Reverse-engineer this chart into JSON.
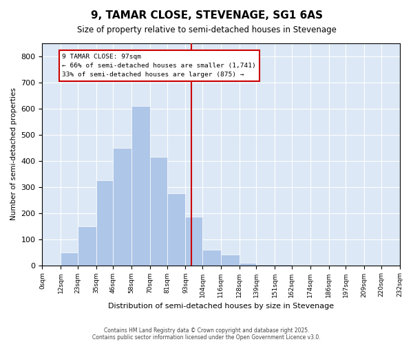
{
  "title": "9, TAMAR CLOSE, STEVENAGE, SG1 6AS",
  "subtitle": "Size of property relative to semi-detached houses in Stevenage",
  "xlabel": "Distribution of semi-detached houses by size in Stevenage",
  "ylabel": "Number of semi-detached properties",
  "property_size": 97,
  "annotation_title": "9 TAMAR CLOSE: 97sqm",
  "annotation_line2": "← 66% of semi-detached houses are smaller (1,741)",
  "annotation_line3": "33% of semi-detached houses are larger (875) →",
  "footer_line1": "Contains HM Land Registry data © Crown copyright and database right 2025.",
  "footer_line2": "Contains public sector information licensed under the Open Government Licence v3.0.",
  "bins": [
    0,
    12,
    23,
    35,
    46,
    58,
    70,
    81,
    93,
    104,
    116,
    128,
    139,
    151,
    162,
    174,
    186,
    197,
    209,
    220,
    232
  ],
  "bin_labels": [
    "0sqm",
    "12sqm",
    "23sqm",
    "35sqm",
    "46sqm",
    "58sqm",
    "70sqm",
    "81sqm",
    "93sqm",
    "104sqm",
    "116sqm",
    "128sqm",
    "139sqm",
    "151sqm",
    "162sqm",
    "174sqm",
    "186sqm",
    "197sqm",
    "209sqm",
    "220sqm",
    "232sqm"
  ],
  "counts": [
    0,
    50,
    150,
    325,
    450,
    610,
    415,
    275,
    185,
    60,
    40,
    10,
    5,
    3,
    2,
    1,
    0,
    0,
    0,
    0
  ],
  "bar_color": "#aec6e8",
  "vline_color": "#cc0000",
  "annotation_box_edgecolor": "#cc0000",
  "background_color": "#ffffff",
  "grid_color": "#dce8f5",
  "ylim": [
    0,
    850
  ],
  "yticks": [
    0,
    100,
    200,
    300,
    400,
    500,
    600,
    700,
    800
  ]
}
